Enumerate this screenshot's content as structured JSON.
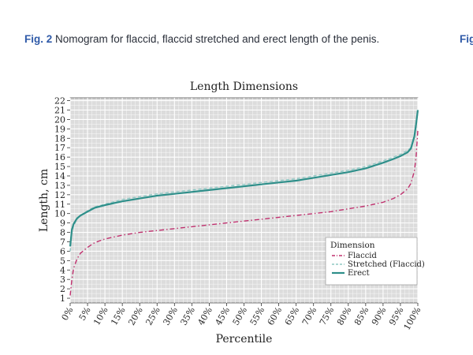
{
  "caption": {
    "label": "Fig. 2",
    "text": "Nomogram for flaccid, flaccid stretched and erect length of the penis."
  },
  "next_figure_label": "Fig",
  "chart_data": {
    "type": "line",
    "title": "Length Dimensions",
    "xlabel": "Percentile",
    "ylabel": "Length, cm",
    "xlim": [
      0,
      100
    ],
    "ylim": [
      0.5,
      22.3
    ],
    "x_ticks": [
      "0%",
      "5%",
      "10%",
      "15%",
      "20%",
      "25%",
      "30%",
      "35%",
      "40%",
      "45%",
      "50%",
      "55%",
      "60%",
      "65%",
      "70%",
      "75%",
      "80%",
      "85%",
      "90%",
      "95%",
      "100%"
    ],
    "y_ticks": [
      "1",
      "2",
      "3",
      "4",
      "5",
      "6",
      "7",
      "8",
      "9",
      "10",
      "11",
      "12",
      "13",
      "14",
      "15",
      "16",
      "17",
      "18",
      "19",
      "20",
      "21",
      "22"
    ],
    "grid": true,
    "legend": {
      "title": "Dimension",
      "position": "bottom-right"
    },
    "x": [
      0,
      0.5,
      1,
      2,
      3,
      5,
      7,
      10,
      15,
      20,
      25,
      30,
      35,
      40,
      45,
      50,
      55,
      60,
      65,
      70,
      75,
      80,
      85,
      90,
      93,
      95,
      97,
      98,
      99,
      99.5,
      100
    ],
    "series": [
      {
        "name": "Flaccid",
        "style": "dashdot",
        "color": "#c0306e",
        "values": [
          1.3,
          3.0,
          4.2,
          5.2,
          5.8,
          6.4,
          6.9,
          7.3,
          7.7,
          8.0,
          8.2,
          8.4,
          8.6,
          8.8,
          9.0,
          9.2,
          9.4,
          9.6,
          9.8,
          10.0,
          10.2,
          10.5,
          10.8,
          11.2,
          11.6,
          12.0,
          12.6,
          13.2,
          14.5,
          16.0,
          18.8
        ]
      },
      {
        "name": "Stretched (Flaccid)",
        "style": "dashed",
        "color": "#8fc8c4",
        "values": [
          6.0,
          8.0,
          8.7,
          9.4,
          9.8,
          10.3,
          10.7,
          11.0,
          11.5,
          11.8,
          12.1,
          12.3,
          12.5,
          12.7,
          12.9,
          13.1,
          13.3,
          13.5,
          13.7,
          14.0,
          14.3,
          14.6,
          15.0,
          15.6,
          16.0,
          16.3,
          16.7,
          17.0,
          18.0,
          19.2,
          20.8
        ]
      },
      {
        "name": "Erect",
        "style": "solid",
        "color": "#2e8f8a",
        "values": [
          6.5,
          8.3,
          8.9,
          9.5,
          9.8,
          10.2,
          10.6,
          10.9,
          11.3,
          11.6,
          11.9,
          12.1,
          12.3,
          12.5,
          12.7,
          12.9,
          13.1,
          13.3,
          13.5,
          13.8,
          14.1,
          14.4,
          14.8,
          15.4,
          15.8,
          16.1,
          16.5,
          16.9,
          18.2,
          19.5,
          21.0
        ]
      }
    ]
  }
}
